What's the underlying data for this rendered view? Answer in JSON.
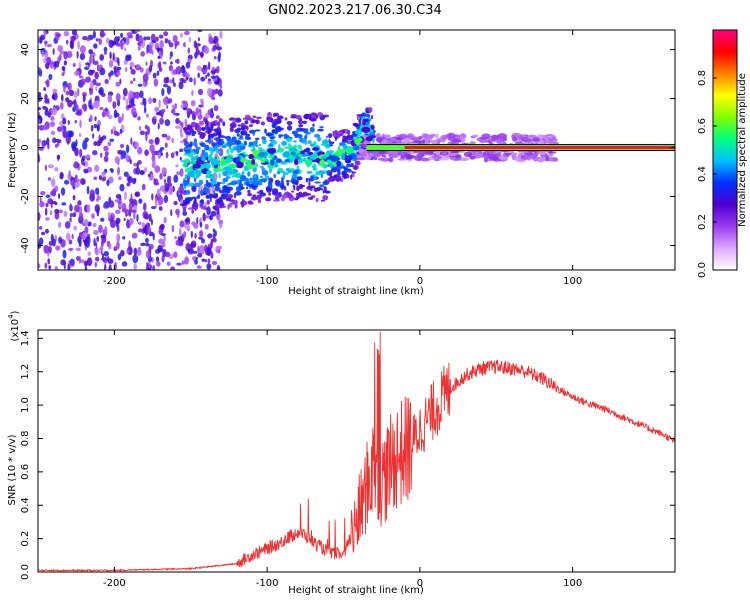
{
  "title": "GN02.2023.217.06.30.C34",
  "chart_data": [
    {
      "type": "heatmap",
      "xlabel": "Height of straight line (km)",
      "ylabel": "Frequency (Hz)",
      "xlim": [
        -250,
        167
      ],
      "ylim": [
        -50,
        48
      ],
      "xticks": [
        -200,
        -100,
        0,
        100
      ],
      "yticks": [
        -40,
        -20,
        0,
        20,
        40
      ],
      "ridge": [
        {
          "x": -150,
          "y": -8
        },
        {
          "x": -120,
          "y": -6
        },
        {
          "x": -100,
          "y": -4
        },
        {
          "x": -80,
          "y": -3
        },
        {
          "x": -60,
          "y": -4
        },
        {
          "x": -45,
          "y": -3
        },
        {
          "x": -35,
          "y": 10
        },
        {
          "x": -30,
          "y": 0
        },
        {
          "x": 0,
          "y": 0
        },
        {
          "x": 50,
          "y": 0
        },
        {
          "x": 100,
          "y": 0
        },
        {
          "x": 167,
          "y": 0
        }
      ],
      "colorbar": {
        "label": "Normalized spectral amplitude",
        "range": [
          0.0,
          1.0
        ],
        "ticks": [
          0.0,
          0.2,
          0.4,
          0.6,
          0.8
        ],
        "colors": [
          "#ffffff",
          "#dca8ff",
          "#9a3cf0",
          "#5000d0",
          "#0030ff",
          "#00c0ff",
          "#00ff80",
          "#80ff00",
          "#ffff00",
          "#ff8000",
          "#ff0000",
          "#ff0080"
        ]
      }
    },
    {
      "type": "line",
      "xlabel": "Height of straight line (km)",
      "ylabel": "SNR (10 * v/v)",
      "yscale_label": "(x10",
      "yscale_exp": "4",
      "yscale_close": ")",
      "xlim": [
        -250,
        167
      ],
      "ylim": [
        0.0,
        1.45
      ],
      "xticks": [
        -200,
        -100,
        0,
        100
      ],
      "yticks": [
        0.0,
        0.2,
        0.4,
        0.6,
        0.8,
        1.0,
        1.2,
        1.4
      ],
      "color": "#ee3030",
      "series": [
        {
          "name": "SNR",
          "x": [
            -250,
            -200,
            -150,
            -130,
            -120,
            -110,
            -100,
            -90,
            -80,
            -75,
            -70,
            -60,
            -50,
            -42,
            -35,
            -30,
            -25,
            -20,
            -15,
            -10,
            -5,
            0,
            10,
            20,
            30,
            40,
            50,
            60,
            70,
            80,
            90,
            100,
            110,
            120,
            130,
            140,
            150,
            160,
            167
          ],
          "y": [
            0.01,
            0.01,
            0.02,
            0.04,
            0.05,
            0.1,
            0.14,
            0.18,
            0.24,
            0.22,
            0.18,
            0.12,
            0.1,
            0.28,
            0.5,
            0.65,
            0.55,
            0.62,
            0.7,
            0.72,
            0.78,
            0.85,
            0.98,
            1.1,
            1.18,
            1.22,
            1.23,
            1.22,
            1.2,
            1.16,
            1.1,
            1.05,
            1.01,
            0.98,
            0.94,
            0.9,
            0.86,
            0.82,
            0.78
          ]
        }
      ]
    }
  ]
}
